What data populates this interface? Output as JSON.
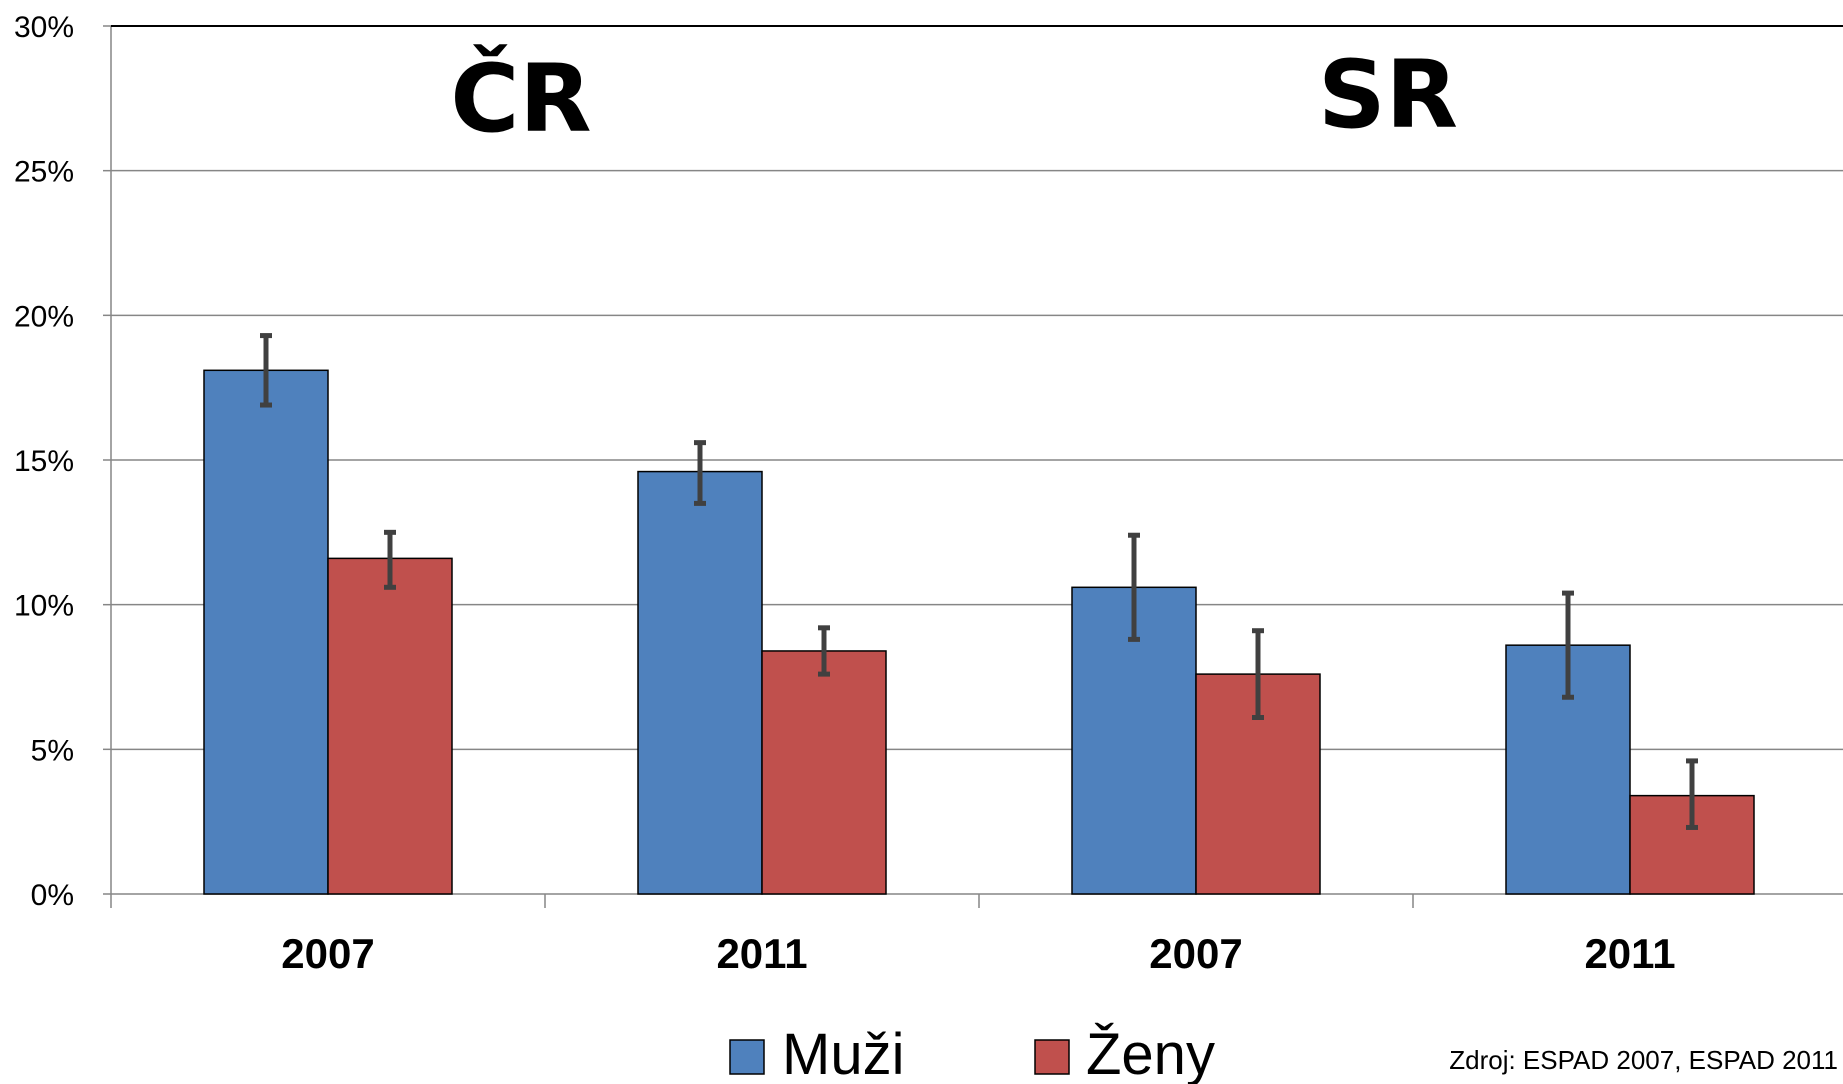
{
  "chart_data": {
    "type": "bar",
    "group_labels": [
      "ČR",
      "SR"
    ],
    "categories": [
      "2007",
      "2011",
      "2007",
      "2011"
    ],
    "category_group": [
      0,
      0,
      1,
      1
    ],
    "series": [
      {
        "name": "Muži",
        "color": "#4F81BD",
        "values": [
          18.1,
          14.6,
          10.6,
          8.6
        ],
        "error_low": [
          16.9,
          13.5,
          8.8,
          6.8
        ],
        "error_high": [
          19.3,
          15.6,
          12.4,
          10.4
        ]
      },
      {
        "name": "Ženy",
        "color": "#C0504D",
        "values": [
          11.6,
          8.4,
          7.6,
          3.4
        ],
        "error_low": [
          10.6,
          7.6,
          6.1,
          2.3
        ],
        "error_high": [
          12.5,
          9.2,
          9.1,
          4.6
        ]
      }
    ],
    "ylim": [
      0,
      30
    ],
    "yticks": [
      0,
      5,
      10,
      15,
      20,
      25,
      30
    ],
    "ytick_labels": [
      "0%",
      "5%",
      "10%",
      "15%",
      "20%",
      "25%",
      "30%"
    ],
    "grid": true,
    "legend_position": "bottom",
    "xlabel": "",
    "ylabel": "",
    "source": "Zdroj: ESPAD 2007, ESPAD 2011"
  }
}
